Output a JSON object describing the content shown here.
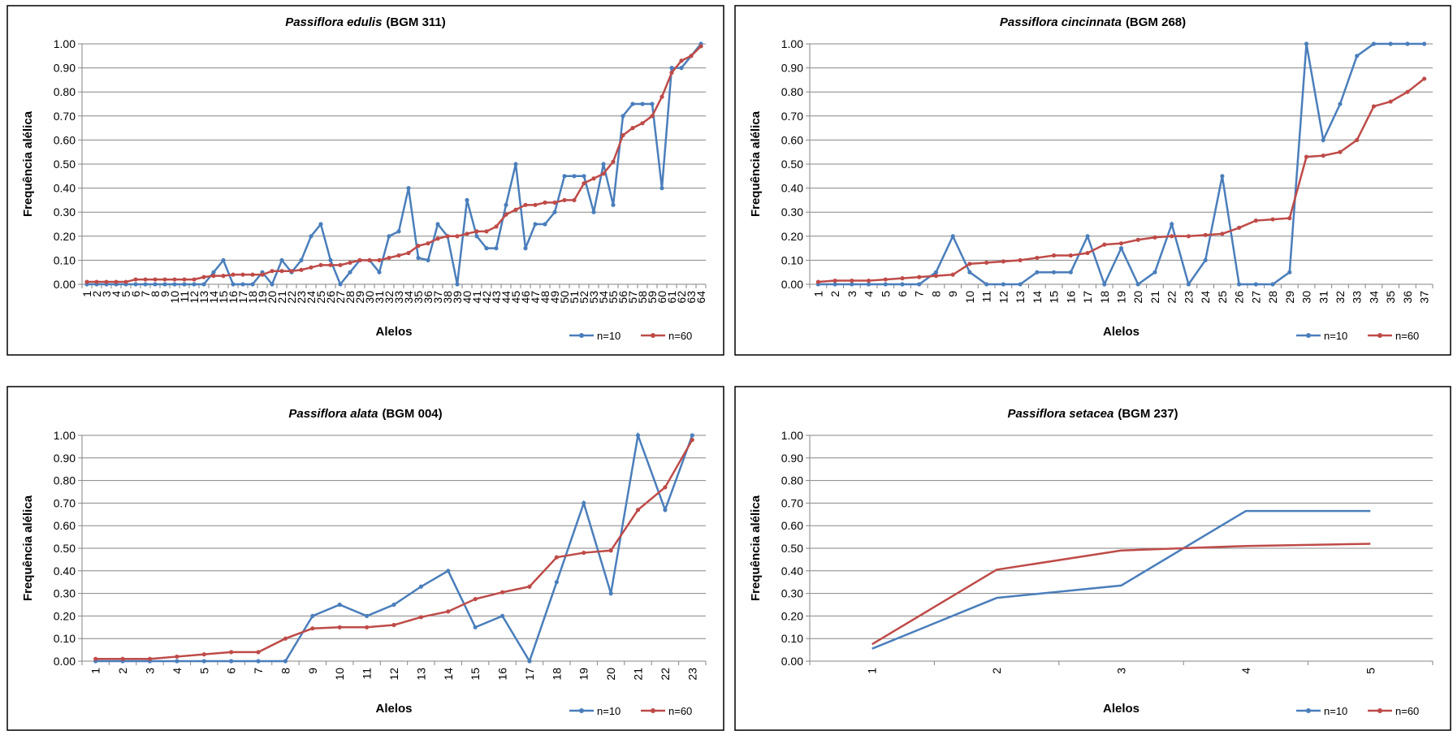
{
  "chart_data": [
    {
      "type": "line",
      "title": {
        "species": "Passiflora edulis",
        "code": "(BGM 311)"
      },
      "x_label": "Alelos",
      "y_label": "Frequência alélica",
      "markers": true,
      "grid": true,
      "legend": "lower right",
      "categories": [
        "1",
        "2",
        "3",
        "4",
        "5",
        "6",
        "7",
        "8",
        "9",
        "10",
        "11",
        "12",
        "13",
        "14",
        "15",
        "16",
        "17",
        "18",
        "19",
        "20",
        "21",
        "22",
        "23",
        "24",
        "25",
        "26",
        "27",
        "28",
        "29",
        "30",
        "31",
        "32",
        "33",
        "34",
        "35",
        "36",
        "37",
        "38",
        "39",
        "40",
        "41",
        "42",
        "43",
        "44",
        "45",
        "46",
        "47",
        "48",
        "49",
        "50",
        "51",
        "52",
        "53",
        "54",
        "55",
        "56",
        "57",
        "58",
        "59",
        "60",
        "61",
        "62",
        "63",
        "64"
      ],
      "series": [
        {
          "name": "n=10",
          "color": "#4a7ebb",
          "values": [
            0,
            0,
            0,
            0,
            0,
            0,
            0,
            0,
            0,
            0,
            0,
            0,
            0,
            0.05,
            0.1,
            0,
            0,
            0,
            0.05,
            0,
            0.1,
            0.05,
            0.1,
            0.2,
            0.25,
            0.1,
            0,
            0.05,
            0.1,
            0.1,
            0.05,
            0.2,
            0.22,
            0.4,
            0.11,
            0.1,
            0.25,
            0.2,
            0,
            0.35,
            0.2,
            0.15,
            0.15,
            0.33,
            0.5,
            0.15,
            0.25,
            0.25,
            0.3,
            0.45,
            0.45,
            0.45,
            0.3,
            0.5,
            0.33,
            0.7,
            0.75,
            0.75,
            0.75,
            0.4,
            0.9,
            0.9,
            0.95,
            1.0
          ]
        },
        {
          "name": "n=60",
          "color": "#be4b48",
          "values": [
            0.01,
            0.01,
            0.01,
            0.01,
            0.01,
            0.02,
            0.02,
            0.02,
            0.02,
            0.02,
            0.02,
            0.02,
            0.03,
            0.035,
            0.035,
            0.04,
            0.04,
            0.04,
            0.04,
            0.055,
            0.055,
            0.055,
            0.06,
            0.07,
            0.08,
            0.08,
            0.08,
            0.09,
            0.1,
            0.1,
            0.1,
            0.11,
            0.12,
            0.13,
            0.16,
            0.17,
            0.19,
            0.2,
            0.2,
            0.21,
            0.22,
            0.22,
            0.24,
            0.29,
            0.31,
            0.33,
            0.33,
            0.34,
            0.34,
            0.35,
            0.35,
            0.42,
            0.44,
            0.46,
            0.51,
            0.62,
            0.65,
            0.67,
            0.7,
            0.78,
            0.88,
            0.93,
            0.95,
            0.99
          ]
        }
      ],
      "ylim": [
        0,
        1
      ],
      "yticks": [
        {
          "value": 0,
          "label": "0.00"
        },
        {
          "value": 0.1,
          "label": "0.10"
        },
        {
          "value": 0.2,
          "label": "0.20"
        },
        {
          "value": 0.3,
          "label": "0.30"
        },
        {
          "value": 0.4,
          "label": "0.40"
        },
        {
          "value": 0.5,
          "label": "0.50"
        },
        {
          "value": 0.6,
          "label": "0.60"
        },
        {
          "value": 0.7,
          "label": "0.70"
        },
        {
          "value": 0.8,
          "label": "0.80"
        },
        {
          "value": 0.9,
          "label": "0.90"
        },
        {
          "value": 1,
          "label": "1.00"
        }
      ]
    },
    {
      "type": "line",
      "title": {
        "species": "Passiflora cincinnata",
        "code": "(BGM 268)"
      },
      "x_label": "Alelos",
      "y_label": "Frequência alélica",
      "markers": true,
      "grid": true,
      "legend": "lower right",
      "categories": [
        "1",
        "2",
        "3",
        "4",
        "5",
        "6",
        "7",
        "8",
        "9",
        "10",
        "11",
        "12",
        "13",
        "14",
        "15",
        "16",
        "17",
        "18",
        "19",
        "20",
        "21",
        "22",
        "23",
        "24",
        "25",
        "26",
        "27",
        "28",
        "29",
        "30",
        "31",
        "32",
        "33",
        "34",
        "35",
        "36",
        "37"
      ],
      "series": [
        {
          "name": "n=10",
          "color": "#4a7ebb",
          "values": [
            0,
            0,
            0,
            0,
            0,
            0,
            0,
            0.05,
            0.2,
            0.05,
            0,
            0,
            0,
            0.05,
            0.05,
            0.05,
            0.2,
            0,
            0.15,
            0,
            0.05,
            0.25,
            0,
            0.1,
            0.45,
            0,
            0,
            0,
            0.05,
            1.0,
            0.6,
            0.75,
            0.95,
            1.0,
            1.0,
            1.0,
            1.0
          ]
        },
        {
          "name": "n=60",
          "color": "#be4b48",
          "values": [
            0.01,
            0.015,
            0.015,
            0.015,
            0.02,
            0.025,
            0.03,
            0.035,
            0.04,
            0.085,
            0.09,
            0.095,
            0.1,
            0.11,
            0.12,
            0.12,
            0.13,
            0.165,
            0.17,
            0.185,
            0.195,
            0.2,
            0.2,
            0.205,
            0.21,
            0.235,
            0.265,
            0.27,
            0.275,
            0.53,
            0.535,
            0.55,
            0.6,
            0.74,
            0.76,
            0.8,
            0.855
          ]
        }
      ],
      "ylim": [
        0,
        1
      ],
      "yticks": [
        {
          "value": 0,
          "label": "0.00"
        },
        {
          "value": 0.1,
          "label": "0.10"
        },
        {
          "value": 0.2,
          "label": "0.20"
        },
        {
          "value": 0.3,
          "label": "0.30"
        },
        {
          "value": 0.4,
          "label": "0.40"
        },
        {
          "value": 0.5,
          "label": "0.50"
        },
        {
          "value": 0.6,
          "label": "0.60"
        },
        {
          "value": 0.7,
          "label": "0.70"
        },
        {
          "value": 0.8,
          "label": "0.80"
        },
        {
          "value": 0.9,
          "label": "0.90"
        },
        {
          "value": 1,
          "label": "1.00"
        }
      ]
    },
    {
      "type": "line",
      "title": {
        "species": "Passiflora alata",
        "code": "(BGM 004)"
      },
      "x_label": "Alelos",
      "y_label": "Frequência alélica",
      "markers": true,
      "grid": true,
      "legend": "lower right",
      "categories": [
        "1",
        "2",
        "3",
        "4",
        "5",
        "6",
        "7",
        "8",
        "9",
        "10",
        "11",
        "12",
        "13",
        "14",
        "15",
        "16",
        "17",
        "18",
        "19",
        "20",
        "21",
        "22",
        "23"
      ],
      "series": [
        {
          "name": "n=10",
          "color": "#4a7ebb",
          "values": [
            0,
            0,
            0,
            0,
            0,
            0,
            0,
            0,
            0.2,
            0.25,
            0.2,
            0.25,
            0.33,
            0.4,
            0.15,
            0.2,
            0,
            0.35,
            0.7,
            0.3,
            1.0,
            0.67,
            1.0
          ]
        },
        {
          "name": "n=60",
          "color": "#be4b48",
          "values": [
            0.01,
            0.01,
            0.01,
            0.02,
            0.03,
            0.04,
            0.04,
            0.1,
            0.145,
            0.15,
            0.15,
            0.16,
            0.195,
            0.22,
            0.275,
            0.305,
            0.33,
            0.46,
            0.48,
            0.49,
            0.67,
            0.77,
            0.98
          ]
        }
      ],
      "ylim": [
        0,
        1
      ],
      "yticks": [
        {
          "value": 0,
          "label": "0.00"
        },
        {
          "value": 0.1,
          "label": "0.10"
        },
        {
          "value": 0.2,
          "label": "0.20"
        },
        {
          "value": 0.3,
          "label": "0.30"
        },
        {
          "value": 0.4,
          "label": "0.40"
        },
        {
          "value": 0.5,
          "label": "0.50"
        },
        {
          "value": 0.6,
          "label": "0.60"
        },
        {
          "value": 0.7,
          "label": "0.70"
        },
        {
          "value": 0.8,
          "label": "0.80"
        },
        {
          "value": 0.9,
          "label": "0.90"
        },
        {
          "value": 1,
          "label": "1.00"
        }
      ]
    },
    {
      "type": "line",
      "title": {
        "species": "Passiflora setacea",
        "code": "(BGM 237)"
      },
      "x_label": "Alelos",
      "y_label": "Frequência alélica",
      "markers": false,
      "grid": true,
      "legend": "lower right",
      "categories": [
        "1",
        "2",
        "3",
        "4",
        "5"
      ],
      "series": [
        {
          "name": "n=10",
          "color": "#4a7ebb",
          "values": [
            0.055,
            0.28,
            0.335,
            0.665,
            0.665
          ]
        },
        {
          "name": "n=60",
          "color": "#be4b48",
          "values": [
            0.075,
            0.405,
            0.49,
            0.51,
            0.52
          ]
        }
      ],
      "ylim": [
        0,
        1
      ],
      "yticks": [
        {
          "value": 0,
          "label": "0.00"
        },
        {
          "value": 0.1,
          "label": "0.10"
        },
        {
          "value": 0.2,
          "label": "0.20"
        },
        {
          "value": 0.3,
          "label": "0.30"
        },
        {
          "value": 0.4,
          "label": "0.40"
        },
        {
          "value": 0.5,
          "label": "0.50"
        },
        {
          "value": 0.6,
          "label": "0.60"
        },
        {
          "value": 0.7,
          "label": "0.70"
        },
        {
          "value": 0.8,
          "label": "0.80"
        },
        {
          "value": 0.9,
          "label": "0.90"
        },
        {
          "value": 1,
          "label": "1.00"
        }
      ]
    }
  ]
}
